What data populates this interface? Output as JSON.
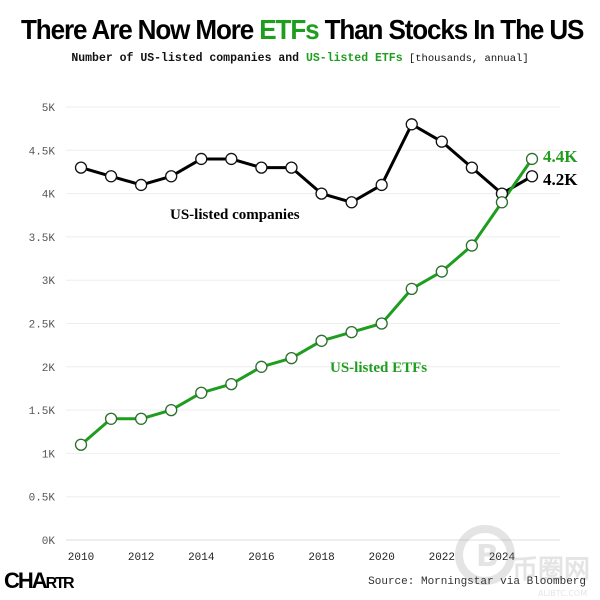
{
  "header": {
    "title_pre": "There Are Now More ",
    "title_accent": "ETFs",
    "title_post": " Than Stocks In The US",
    "subtitle_pre": "Number of US-listed companies and ",
    "subtitle_accent": "US-listed ETFs",
    "subtitle_post": " [thousands, annual]"
  },
  "footer": {
    "logo": "CHARTR",
    "logo_big": "CHA",
    "logo_small": "RTR",
    "source": "Source: Morningstar via Bloomberg",
    "watermark_text": "币圈网",
    "watermark_url": "ALIBTC.COM"
  },
  "colors": {
    "companies": "#000000",
    "etfs": "#1f9d1f",
    "grid": "#eeeeee",
    "axis_text": "#555555"
  },
  "chart_data": {
    "type": "line",
    "title": "There Are Now More ETFs Than Stocks In The US",
    "subtitle": "Number of US-listed companies and US-listed ETFs [thousands, annual]",
    "xlabel": "",
    "ylabel": "",
    "x": [
      2010,
      2011,
      2012,
      2013,
      2014,
      2015,
      2016,
      2017,
      2018,
      2019,
      2020,
      2021,
      2022,
      2023,
      2024,
      2025
    ],
    "xlim": [
      2010,
      2025
    ],
    "ylim": [
      0,
      5
    ],
    "x_ticks": [
      2010,
      2012,
      2014,
      2016,
      2018,
      2020,
      2022,
      2024
    ],
    "x_tick_labels": [
      "2010",
      "2012",
      "2014",
      "2016",
      "2018",
      "2020",
      "2022",
      "2024"
    ],
    "y_ticks": [
      0,
      0.5,
      1,
      1.5,
      2,
      2.5,
      3,
      3.5,
      4,
      4.5,
      5
    ],
    "y_tick_labels": [
      "0K",
      "0.5K",
      "1K",
      "1.5K",
      "2K",
      "2.5K",
      "3K",
      "3.5K",
      "4K",
      "4.5K",
      "5K"
    ],
    "grid": true,
    "legend": "inline labels",
    "series": [
      {
        "name": "US-listed companies",
        "label": "US-listed companies",
        "end_label": "4.2K",
        "color": "#000000",
        "values": [
          4.3,
          4.2,
          4.1,
          4.2,
          4.4,
          4.4,
          4.3,
          4.3,
          4.0,
          3.9,
          4.1,
          4.8,
          4.6,
          4.3,
          4.0,
          4.2
        ]
      },
      {
        "name": "US-listed ETFs",
        "label": "US-listed ETFs",
        "end_label": "4.4K",
        "color": "#1f9d1f",
        "values": [
          1.1,
          1.4,
          1.4,
          1.5,
          1.7,
          1.8,
          2.0,
          2.1,
          2.3,
          2.4,
          2.5,
          2.9,
          3.1,
          3.4,
          3.9,
          4.4
        ]
      }
    ]
  }
}
